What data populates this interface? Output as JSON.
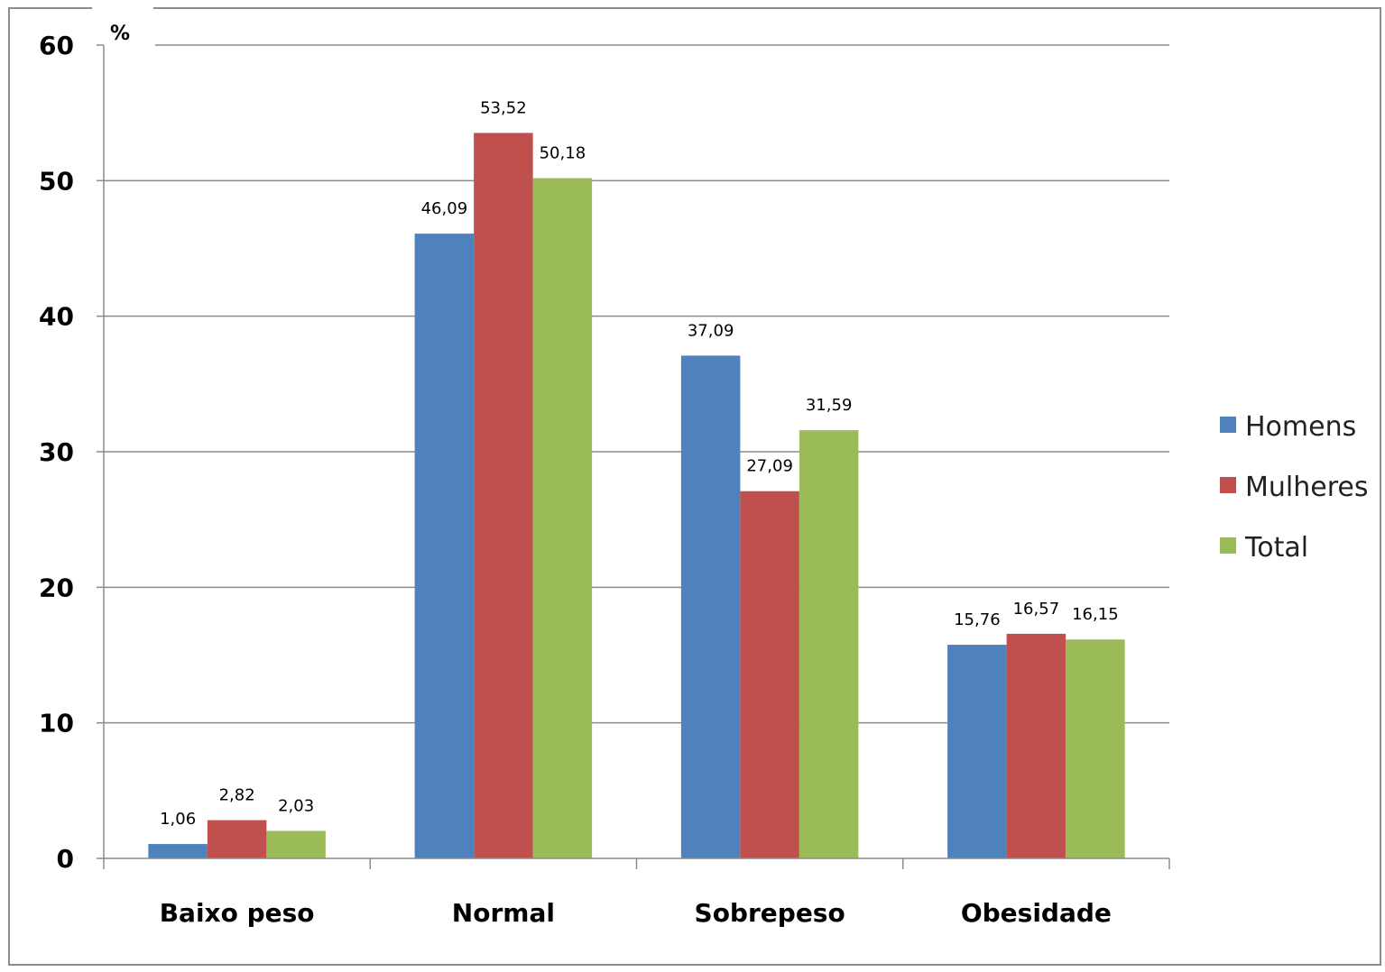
{
  "chart_data": {
    "type": "bar",
    "ylabel": "%",
    "ylim": [
      0,
      60
    ],
    "yticks": [
      "0",
      "10",
      "20",
      "30",
      "40",
      "50",
      "60"
    ],
    "grid": true,
    "legend_position": "right",
    "categories": [
      "Baixo peso",
      "Normal",
      "Sobrepeso",
      "Obesidade"
    ],
    "series": [
      {
        "name": "Homens",
        "color": "#4f81bd",
        "values": [
          1.06,
          46.09,
          37.09,
          15.76
        ],
        "labels": [
          "1,06",
          "46,09",
          "37,09",
          "15,76"
        ]
      },
      {
        "name": "Mulheres",
        "color": "#c0504d",
        "values": [
          2.82,
          53.52,
          27.09,
          16.57
        ],
        "labels": [
          "2,82",
          "53,52",
          "27,09",
          "16,57"
        ]
      },
      {
        "name": "Total",
        "color": "#9bbb59",
        "values": [
          2.03,
          50.18,
          31.59,
          16.15
        ],
        "labels": [
          "2,03",
          "50,18",
          "31,59",
          "16,15"
        ]
      }
    ]
  }
}
